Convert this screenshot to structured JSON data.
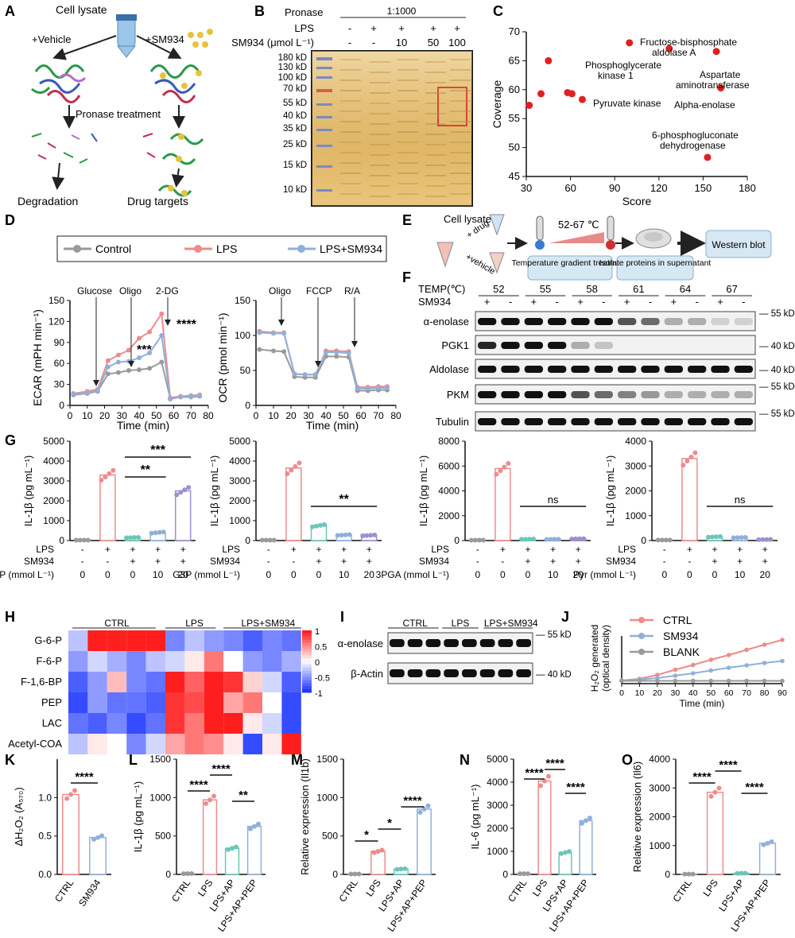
{
  "panels": {
    "A": {
      "letter": "A",
      "cell_lysate": "Cell lysate",
      "vehicle": "+Vehicle",
      "sm934": "+SM934",
      "pronase": "Pronase treatment",
      "degradation": "Degradation",
      "drug_targets": "Drug targets"
    },
    "B": {
      "letter": "B",
      "pronase_label": "Pronase",
      "pronase_ratio": "1:1000",
      "lps_label": "LPS",
      "sm934_label": "SM934 (μmol L⁻¹)",
      "lps_row": [
        "-",
        "+",
        "+",
        "+",
        "+"
      ],
      "sm934_row": [
        "-",
        "-",
        "10",
        "50",
        "100"
      ],
      "markers": [
        "180 kD",
        "130 kD",
        "100 kD",
        "70 kD",
        "55 kD",
        "40 kD",
        "35 kD",
        "25 kD",
        "15 kD",
        "10 kD"
      ]
    },
    "C": {
      "letter": "C",
      "xlabel": "Score",
      "ylabel": "Coverage",
      "xticks": [
        "30",
        "60",
        "90",
        "120",
        "150",
        "180"
      ],
      "yticks": [
        "45",
        "50",
        "55",
        "60",
        "65",
        "70"
      ],
      "labels": {
        "fba": "Fructose-bisphosphate",
        "fba2": "aldolase A",
        "pgk": "Phosphoglycerate",
        "pgk2": "kinase 1",
        "ast": "Aspartate",
        "ast2": "aminotransferase",
        "eno": "Alpha-enolase",
        "pk": "Pyruvate kinase",
        "pgd": "6-phosphogluconate",
        "pgd2": "dehydrogenase"
      }
    },
    "D": {
      "letter": "D",
      "legend": [
        "Control",
        "LPS",
        "LPS+SM934"
      ],
      "ecar_ylabel": "ECAR (mPH min⁻¹)",
      "ocr_ylabel": "OCR (pmol min⁻¹)",
      "xlabel": "Time (min)",
      "ecar_ann": [
        "Glucose",
        "Oligo",
        "2-DG"
      ],
      "ocr_ann": [
        "Oligo",
        "FCCP",
        "R/A"
      ],
      "sig1": "****",
      "sig2": "***",
      "xticks": [
        "0",
        "10",
        "20",
        "30",
        "40",
        "50",
        "60",
        "70",
        "80"
      ],
      "ecar_yticks": [
        "0",
        "30",
        "60",
        "90",
        "120",
        "150"
      ],
      "ocr_yticks": [
        "0",
        "50",
        "100",
        "150"
      ]
    },
    "E": {
      "letter": "E",
      "cell_lysate": "Cell lysate",
      "drug": "+ drug",
      "vehicle": "+vehicle",
      "temp": "52-67 ℃",
      "step1": "Temperature gradient treatment",
      "step2": "Isolate proteins in supernatant",
      "step3": "Western blot"
    },
    "F": {
      "letter": "F",
      "temp_label": "TEMP(℃)",
      "temps": [
        "52",
        "55",
        "58",
        "61",
        "64",
        "67"
      ],
      "sm934_label": "SM934",
      "signs": [
        "+",
        "-",
        "+",
        "-",
        "+",
        "-",
        "+",
        "-",
        "+",
        "-",
        "+",
        "-"
      ],
      "rows": [
        "α-enolase",
        "PGK1",
        "Aldolase",
        "PKM",
        "Tubulin"
      ],
      "kd": [
        "55 kD",
        "40 kD",
        "40 kD",
        "55 kD",
        "55 kD"
      ]
    },
    "G": {
      "letter": "G",
      "ylabel": "IL-1β (pg mL⁻¹)",
      "lps_label": "LPS",
      "sm934_label": "SM934",
      "lps_row": [
        "-",
        "+",
        "+",
        "+",
        "+"
      ],
      "sm934_row": [
        "-",
        "-",
        "+",
        "+",
        "+"
      ],
      "doses": [
        "0",
        "0",
        "0",
        "10",
        "20"
      ],
      "treatments": [
        "PEP (mmol L⁻¹)",
        "G3P (mmol L⁻¹)",
        "3PGA (mmol L⁻¹)",
        "Pyr (mmol L⁻¹)"
      ],
      "sig": {
        "p1a": "***",
        "p1b": "**",
        "p2": "**",
        "p3": "ns",
        "p4": "ns"
      }
    },
    "H": {
      "letter": "H",
      "groups": [
        "CTRL",
        "LPS",
        "LPS+SM934"
      ],
      "rows": [
        "G-6-P",
        "F-6-P",
        "F-1,6-BP",
        "PEP",
        "LAC",
        "Acetyl-COA"
      ],
      "scale": [
        "1",
        "0.5",
        "0",
        "-0.5",
        "-1"
      ]
    },
    "I": {
      "letter": "I",
      "groups": [
        "CTRL",
        "LPS",
        "LPS+SM934"
      ],
      "rows": [
        "α-enolase",
        "β-Actin"
      ],
      "kd": [
        "55 kD",
        "40 kD"
      ]
    },
    "J": {
      "letter": "J",
      "legend": [
        "CTRL",
        "SM934",
        "BLANK"
      ],
      "ylabel1": "H₂O₂ generated",
      "ylabel2": "(optical density)",
      "xlabel": "Time (min)",
      "xticks": [
        "0",
        "10",
        "20",
        "30",
        "40",
        "50",
        "60",
        "70",
        "80",
        "90"
      ]
    },
    "K": {
      "letter": "K",
      "ylabel": "ΔH₂O₂ (A₅₇₀)",
      "cats": [
        "CTRL",
        "SM934"
      ],
      "yticks": [
        "0.0",
        "0.5",
        "1.0"
      ],
      "sig": "****"
    },
    "L": {
      "letter": "L",
      "ylabel": "IL-1β (pg mL⁻¹)",
      "cats": [
        "CTRL",
        "LPS",
        "LPS+AP",
        "LPS+AP+PEP"
      ],
      "yticks": [
        "0",
        "500",
        "1000",
        "1500"
      ],
      "sig": [
        "****",
        "****",
        "**"
      ]
    },
    "M": {
      "letter": "M",
      "ylabel": "Relative expression (Il1b)",
      "cats": [
        "CTRL",
        "LPS",
        "LPS+AP",
        "LPS+AP+PEP"
      ],
      "yticks": [
        "0",
        "500",
        "1000",
        "1500"
      ],
      "sig": [
        "*",
        "*",
        "****"
      ]
    },
    "N": {
      "letter": "N",
      "ylabel": "IL-6 (pg mL⁻¹)",
      "cats": [
        "CTRL",
        "LPS",
        "LPS+AP",
        "LPS+AP+PEP"
      ],
      "yticks": [
        "0",
        "1000",
        "2000",
        "3000",
        "4000",
        "5000"
      ],
      "sig": [
        "****",
        "****",
        "****"
      ]
    },
    "O": {
      "letter": "O",
      "ylabel": "Relative expression (Il6)",
      "cats": [
        "CTRL",
        "LPS",
        "LPS+AP",
        "LPS+AP+PEP"
      ],
      "yticks": [
        "0",
        "1000",
        "2000",
        "3000",
        "4000"
      ],
      "sig": [
        "****",
        "****",
        "****"
      ]
    }
  },
  "chart_data": [
    {
      "panel": "C",
      "type": "scatter",
      "xlabel": "Score",
      "ylabel": "Coverage",
      "xlim": [
        30,
        180
      ],
      "ylim": [
        45,
        70
      ],
      "points": [
        {
          "x": 32,
          "y": 57.3
        },
        {
          "x": 40,
          "y": 59.3
        },
        {
          "x": 45,
          "y": 65
        },
        {
          "x": 58,
          "y": 59.5
        },
        {
          "x": 61,
          "y": 59.3
        },
        {
          "x": 68,
          "y": 58.3
        },
        {
          "x": 100,
          "y": 68.1
        },
        {
          "x": 127,
          "y": 67.1
        },
        {
          "x": 159,
          "y": 66.6
        },
        {
          "x": 162,
          "y": 60.3
        },
        {
          "x": 153,
          "y": 48.3
        }
      ]
    },
    {
      "panel": "D-ECAR",
      "type": "line",
      "xlabel": "Time (min)",
      "ylabel": "ECAR (mPH min⁻¹)",
      "xlim": [
        0,
        80
      ],
      "ylim": [
        0,
        150
      ],
      "x": [
        2,
        10,
        16,
        22,
        28,
        34,
        40,
        46,
        53,
        58,
        64,
        70,
        75
      ],
      "series": [
        {
          "name": "Control",
          "values": [
            15,
            17,
            20,
            45,
            47,
            50,
            51,
            53,
            62,
            10,
            12,
            12,
            13
          ]
        },
        {
          "name": "LPS",
          "values": [
            17,
            20,
            23,
            64,
            72,
            79,
            96,
            105,
            131,
            11,
            13,
            14,
            15
          ]
        },
        {
          "name": "LPS+SM934",
          "values": [
            16,
            18,
            21,
            55,
            62,
            63,
            68,
            75,
            100,
            9,
            12,
            13,
            14
          ]
        }
      ]
    },
    {
      "panel": "D-OCR",
      "type": "line",
      "xlabel": "Time (min)",
      "ylabel": "OCR (pmol min⁻¹)",
      "xlim": [
        0,
        80
      ],
      "ylim": [
        0,
        150
      ],
      "x": [
        2,
        10,
        16,
        22,
        28,
        34,
        40,
        46,
        53,
        58,
        64,
        70,
        75
      ],
      "series": [
        {
          "name": "Control",
          "values": [
            80,
            78,
            77,
            41,
            40,
            40,
            70,
            70,
            69,
            21,
            21,
            22,
            22
          ]
        },
        {
          "name": "LPS",
          "values": [
            106,
            104,
            104,
            45,
            44,
            44,
            78,
            78,
            77,
            26,
            26,
            27,
            27
          ]
        },
        {
          "name": "LPS+SM934",
          "values": [
            104,
            103,
            103,
            45,
            44,
            44,
            76,
            76,
            75,
            24,
            24,
            25,
            25
          ]
        }
      ]
    },
    {
      "panel": "G1",
      "type": "bar",
      "categories": [
        "1",
        "2",
        "3",
        "4",
        "5"
      ],
      "values": [
        20,
        3300,
        150,
        400,
        2500
      ],
      "ylim": [
        0,
        5000
      ],
      "yticks": [
        "0",
        "1000",
        "2000",
        "3000",
        "4000",
        "5000"
      ]
    },
    {
      "panel": "G2",
      "type": "bar",
      "categories": [
        "1",
        "2",
        "3",
        "4",
        "5"
      ],
      "values": [
        20,
        3650,
        750,
        280,
        260
      ],
      "ylim": [
        0,
        5000
      ],
      "yticks": [
        "0",
        "1000",
        "2000",
        "3000",
        "4000",
        "5000"
      ]
    },
    {
      "panel": "G3",
      "type": "bar",
      "categories": [
        "1",
        "2",
        "3",
        "4",
        "5"
      ],
      "values": [
        30,
        5800,
        110,
        100,
        140
      ],
      "ylim": [
        0,
        8000
      ],
      "yticks": [
        "0",
        "2000",
        "4000",
        "6000",
        "8000"
      ]
    },
    {
      "panel": "G4",
      "type": "bar",
      "categories": [
        "1",
        "2",
        "3",
        "4",
        "5"
      ],
      "values": [
        20,
        3300,
        150,
        120,
        40
      ],
      "ylim": [
        0,
        4000
      ],
      "yticks": [
        "0",
        "1000",
        "2000",
        "3000",
        "4000"
      ]
    },
    {
      "panel": "J",
      "type": "line",
      "xlabel": "Time (min)",
      "xlim": [
        0,
        90
      ],
      "x": [
        0,
        10,
        20,
        30,
        40,
        50,
        60,
        70,
        80,
        90
      ],
      "series": [
        {
          "name": "CTRL",
          "values": [
            0.08,
            0.12,
            0.22,
            0.35,
            0.47,
            0.6,
            0.72,
            0.85,
            0.98,
            1.1
          ]
        },
        {
          "name": "SM934",
          "values": [
            0.08,
            0.1,
            0.14,
            0.2,
            0.26,
            0.33,
            0.4,
            0.46,
            0.52,
            0.57
          ]
        },
        {
          "name": "BLANK",
          "values": [
            0.07,
            0.07,
            0.07,
            0.07,
            0.07,
            0.07,
            0.07,
            0.07,
            0.07,
            0.07
          ]
        }
      ]
    },
    {
      "panel": "K",
      "type": "bar",
      "categories": [
        "CTRL",
        "SM934"
      ],
      "values": [
        1.04,
        0.48
      ],
      "ylim": [
        0,
        1.5
      ]
    },
    {
      "panel": "L",
      "type": "bar",
      "categories": [
        "CTRL",
        "LPS",
        "LPS+AP",
        "LPS+AP+PEP"
      ],
      "values": [
        10,
        970,
        340,
        625
      ],
      "ylim": [
        0,
        1500
      ]
    },
    {
      "panel": "M",
      "type": "bar",
      "categories": [
        "CTRL",
        "LPS",
        "LPS+AP",
        "LPS+AP+PEP"
      ],
      "values": [
        5,
        300,
        70,
        850
      ],
      "ylim": [
        0,
        1500
      ]
    },
    {
      "panel": "N",
      "type": "bar",
      "categories": [
        "CTRL",
        "LPS",
        "LPS+AP",
        "LPS+AP+PEP"
      ],
      "values": [
        30,
        4050,
        950,
        2330
      ],
      "ylim": [
        0,
        5000
      ]
    },
    {
      "panel": "O",
      "type": "bar",
      "categories": [
        "CTRL",
        "LPS",
        "LPS+AP",
        "LPS+AP+PEP"
      ],
      "values": [
        10,
        2850,
        40,
        1080
      ],
      "ylim": [
        0,
        4000
      ]
    }
  ],
  "colors": {
    "control": "#9a9a9a",
    "lps": "#ef8b8b",
    "sm934": "#8fb0db",
    "red": "#e02020",
    "teal": "#6ac7b8",
    "purple": "#9d8fd0"
  }
}
